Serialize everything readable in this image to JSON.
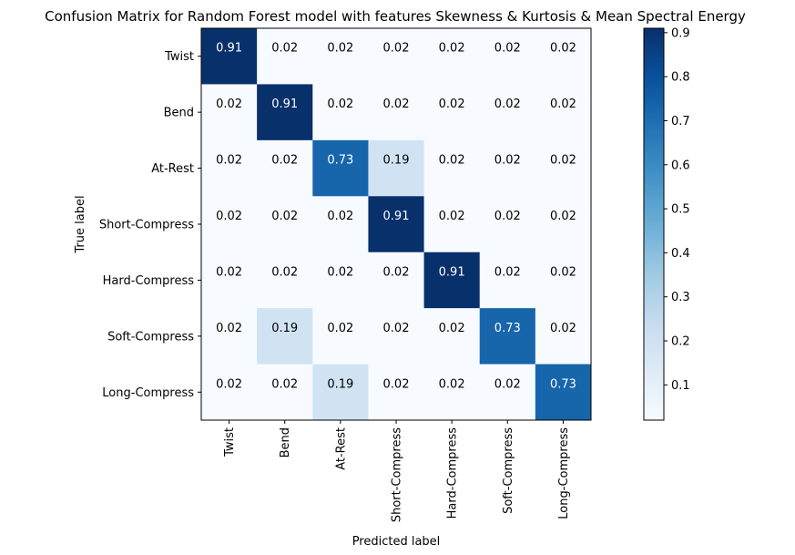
{
  "chart_data": {
    "type": "heatmap",
    "title": "Confusion Matrix for Random Forest model with features Skewness & Kurtosis & Mean Spectral Energy",
    "xlabel": "Predicted label",
    "ylabel": "True label",
    "x_categories": [
      "Twist",
      "Bend",
      "At-Rest",
      "Short-Compress",
      "Hard-Compress",
      "Soft-Compress",
      "Long-Compress"
    ],
    "y_categories": [
      "Twist",
      "Bend",
      "At-Rest",
      "Short-Compress",
      "Hard-Compress",
      "Soft-Compress",
      "Long-Compress"
    ],
    "values": [
      [
        0.91,
        0.02,
        0.02,
        0.02,
        0.02,
        0.02,
        0.02
      ],
      [
        0.02,
        0.91,
        0.02,
        0.02,
        0.02,
        0.02,
        0.02
      ],
      [
        0.02,
        0.02,
        0.73,
        0.19,
        0.02,
        0.02,
        0.02
      ],
      [
        0.02,
        0.02,
        0.02,
        0.91,
        0.02,
        0.02,
        0.02
      ],
      [
        0.02,
        0.02,
        0.02,
        0.02,
        0.91,
        0.02,
        0.02
      ],
      [
        0.02,
        0.19,
        0.02,
        0.02,
        0.02,
        0.73,
        0.02
      ],
      [
        0.02,
        0.02,
        0.19,
        0.02,
        0.02,
        0.02,
        0.73
      ]
    ],
    "colormap": "Blues",
    "color_range": [
      0.02,
      0.91
    ],
    "colorbar_ticks": [
      "0.1",
      "0.2",
      "0.3",
      "0.4",
      "0.5",
      "0.6",
      "0.7",
      "0.8",
      "0.9"
    ],
    "colorbar_tick_values": [
      0.1,
      0.2,
      0.3,
      0.4,
      0.5,
      0.6,
      0.7,
      0.8,
      0.9
    ],
    "grid": false,
    "legend": "colorbar-right"
  }
}
